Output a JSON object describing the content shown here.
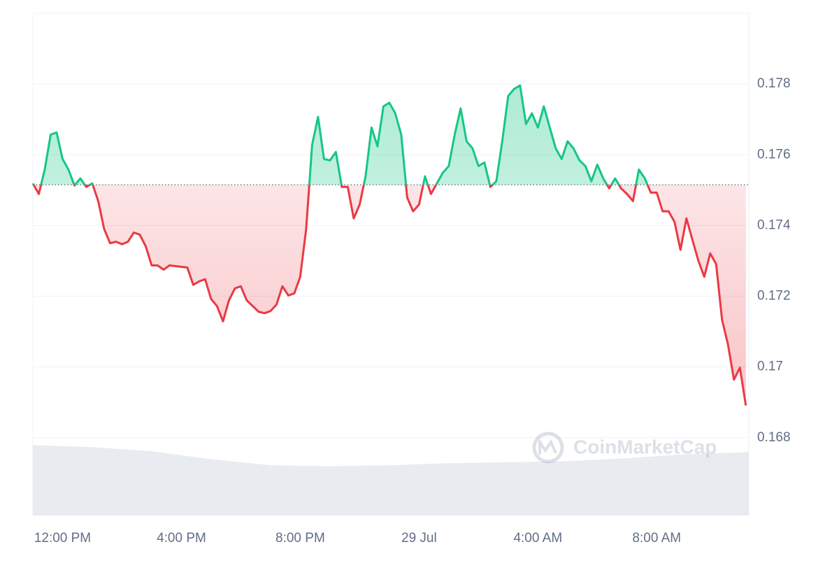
{
  "chart_data": {
    "type": "line",
    "x": [
      11,
      11.2,
      11.4,
      11.6,
      11.8,
      12,
      12.2,
      12.4,
      12.6,
      12.8,
      13,
      13.2,
      13.4,
      13.6,
      13.8,
      14,
      14.2,
      14.4,
      14.6,
      14.8,
      15,
      15.2,
      15.4,
      15.6,
      15.8,
      16,
      16.2,
      16.4,
      16.6,
      16.8,
      17,
      17.2,
      17.4,
      17.6,
      17.8,
      18,
      18.2,
      18.4,
      18.6,
      18.8,
      19,
      19.2,
      19.4,
      19.6,
      19.8,
      20,
      20.2,
      20.4,
      20.6,
      20.8,
      21,
      21.2,
      21.4,
      21.6,
      21.8,
      22,
      22.2,
      22.4,
      22.6,
      22.8,
      23,
      23.2,
      23.4,
      23.6,
      23.8,
      24,
      24.2,
      24.4,
      24.6,
      24.8,
      25,
      25.2,
      25.4,
      25.6,
      25.8,
      26,
      26.2,
      26.4,
      26.6,
      26.8,
      27,
      27.2,
      27.4,
      27.6,
      27.8,
      28,
      28.2,
      28.4,
      28.6,
      28.8,
      29,
      29.2,
      29.4,
      29.6,
      29.8,
      30,
      30.2,
      30.4,
      30.6,
      30.8,
      31,
      31.2,
      31.4,
      31.6,
      31.8,
      32,
      32.2,
      32.4,
      32.6,
      32.8,
      33,
      33.2,
      33.4,
      33.6,
      33.8,
      34,
      34.2,
      34.4,
      34.6,
      34.8,
      35
    ],
    "values": [
      0.17519,
      0.17489,
      0.17558,
      0.17657,
      0.17663,
      0.17588,
      0.17558,
      0.17513,
      0.17533,
      0.17509,
      0.17519,
      0.17469,
      0.1739,
      0.1735,
      0.17354,
      0.17347,
      0.17354,
      0.1738,
      0.17374,
      0.17341,
      0.17287,
      0.17287,
      0.17275,
      0.17287,
      0.17285,
      0.17283,
      0.17281,
      0.17232,
      0.17242,
      0.17248,
      0.17192,
      0.17172,
      0.17129,
      0.17188,
      0.17222,
      0.17228,
      0.17188,
      0.17172,
      0.17156,
      0.17152,
      0.17158,
      0.17176,
      0.17228,
      0.17202,
      0.17208,
      0.17255,
      0.1739,
      0.17628,
      0.17707,
      0.17588,
      0.17584,
      0.17608,
      0.17509,
      0.17509,
      0.1742,
      0.17459,
      0.17539,
      0.17677,
      0.17624,
      0.17737,
      0.17747,
      0.17717,
      0.17657,
      0.17479,
      0.1744,
      0.17459,
      0.17539,
      0.17489,
      0.17519,
      0.17549,
      0.17568,
      0.17657,
      0.17731,
      0.17638,
      0.17618,
      0.17568,
      0.17578,
      0.17509,
      0.17525,
      0.17638,
      0.17766,
      0.17786,
      0.17796,
      0.17687,
      0.17717,
      0.17677,
      0.17737,
      0.17677,
      0.17618,
      0.17588,
      0.17638,
      0.17618,
      0.17584,
      0.17568,
      0.17525,
      0.17572,
      0.17533,
      0.17505,
      0.17533,
      0.17505,
      0.17489,
      0.17469,
      0.17558,
      0.17533,
      0.17493,
      0.17493,
      0.1744,
      0.1744,
      0.1741,
      0.17331,
      0.1742,
      0.1736,
      0.17301,
      0.17255,
      0.17321,
      0.17291,
      0.17133,
      0.17063,
      0.16964,
      0.16998,
      0.16891
    ],
    "baseline": 0.17515,
    "up_color": "#16c784",
    "down_color": "#ea3943",
    "xlim": [
      11,
      35.1
    ],
    "xticks": [
      {
        "value": 12,
        "label": "12:00 PM"
      },
      {
        "value": 16,
        "label": "4:00 PM"
      },
      {
        "value": 20,
        "label": "8:00 PM"
      },
      {
        "value": 24,
        "label": "29 Jul"
      },
      {
        "value": 28,
        "label": "4:00 AM"
      },
      {
        "value": 32,
        "label": "8:00 AM"
      }
    ],
    "ylim": [
      0.1658,
      0.18
    ],
    "yticks": [
      0.168,
      0.17,
      0.172,
      0.174,
      0.176,
      0.178
    ],
    "grid": true,
    "volume": {
      "x": [
        11,
        13,
        15,
        17,
        19,
        21,
        23,
        25,
        27,
        29,
        31,
        33,
        35.1
      ],
      "values": [
        70,
        68,
        64,
        56,
        50,
        49,
        50,
        52,
        53,
        54,
        57,
        61,
        63
      ],
      "lim": [
        0,
        100
      ],
      "color": "#e8ebf0"
    },
    "watermark": "CoinMarketCap"
  }
}
